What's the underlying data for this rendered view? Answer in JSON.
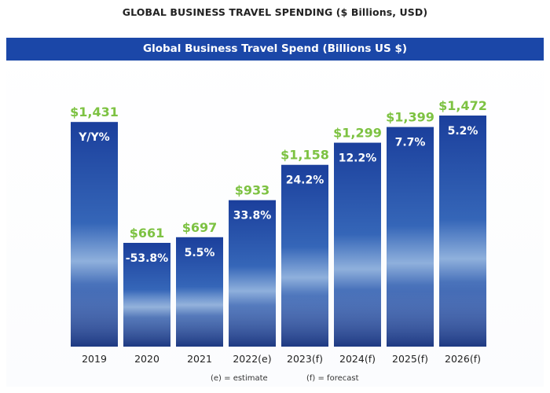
{
  "page_title": "GLOBAL BUSINESS TRAVEL SPENDING ($ Billions, USD)",
  "footnotes": {
    "estimate": "(e) = estimate",
    "forecast": "(f) = forecast"
  },
  "colors": {
    "banner": "#1b47a8",
    "value_label": "#7dc242",
    "bar_top": "#1b3f9c",
    "bar_bottom": "#5a86c9",
    "bar_text": "#ffffff"
  },
  "chart_data": {
    "type": "bar",
    "title": "Global Business Travel Spend (Billions US $)",
    "xlabel": "",
    "ylabel": "",
    "categories": [
      "2019",
      "2020",
      "2021",
      "2022(e)",
      "2023(f)",
      "2024(f)",
      "2025(f)",
      "2026(f)"
    ],
    "values": [
      1431,
      661,
      697,
      933,
      1158,
      1299,
      1399,
      1472
    ],
    "value_labels": [
      "$1,431",
      "$661",
      "$697",
      "$933",
      "$1,158",
      "$1,299",
      "$1,399",
      "$1,472"
    ],
    "yoy_labels": [
      "Y/Y%",
      "-53.8%",
      "5.5%",
      "33.8%",
      "24.2%",
      "12.2%",
      "7.7%",
      "5.2%"
    ],
    "ylim": [
      0,
      1472
    ],
    "grid": false,
    "legend": "none"
  }
}
